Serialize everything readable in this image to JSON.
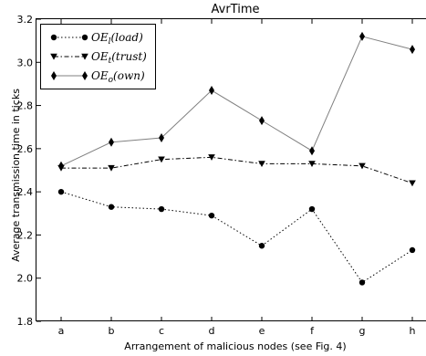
{
  "chart_data": {
    "type": "line",
    "title": "AvrTime",
    "xlabel": "Arrangement of malicious nodes (see Fig. 4)",
    "ylabel": "Average transmission time in ticks",
    "categories": [
      "a",
      "b",
      "c",
      "d",
      "e",
      "f",
      "g",
      "h"
    ],
    "ylim": [
      1.8,
      3.2
    ],
    "yticks": [
      "1.8",
      "2.0",
      "2.2",
      "2.4",
      "2.6",
      "2.8",
      "3.0",
      "3.2"
    ],
    "grid": false,
    "legend_position": "top-left",
    "series": [
      {
        "name": "OE_l(load)",
        "legend_main": "OE",
        "legend_sub": "l",
        "legend_paren": "(load)",
        "marker": "circle",
        "line_style": "dotted",
        "color": "#000000",
        "values": [
          2.4,
          2.33,
          2.32,
          2.29,
          2.15,
          2.32,
          1.98,
          2.13
        ]
      },
      {
        "name": "OE_t(trust)",
        "legend_main": "OE",
        "legend_sub": "t",
        "legend_paren": "(trust)",
        "marker": "triangle-down",
        "line_style": "dashdot",
        "color": "#000000",
        "values": [
          2.51,
          2.51,
          2.55,
          2.56,
          2.53,
          2.53,
          2.52,
          2.44
        ]
      },
      {
        "name": "OE_o(own)",
        "legend_main": "OE",
        "legend_sub": "o",
        "legend_paren": "(own)",
        "marker": "diamond",
        "line_style": "solid",
        "line_color": "#808080",
        "color": "#000000",
        "values": [
          2.52,
          2.63,
          2.65,
          2.87,
          2.73,
          2.59,
          3.12,
          3.06
        ]
      }
    ]
  }
}
